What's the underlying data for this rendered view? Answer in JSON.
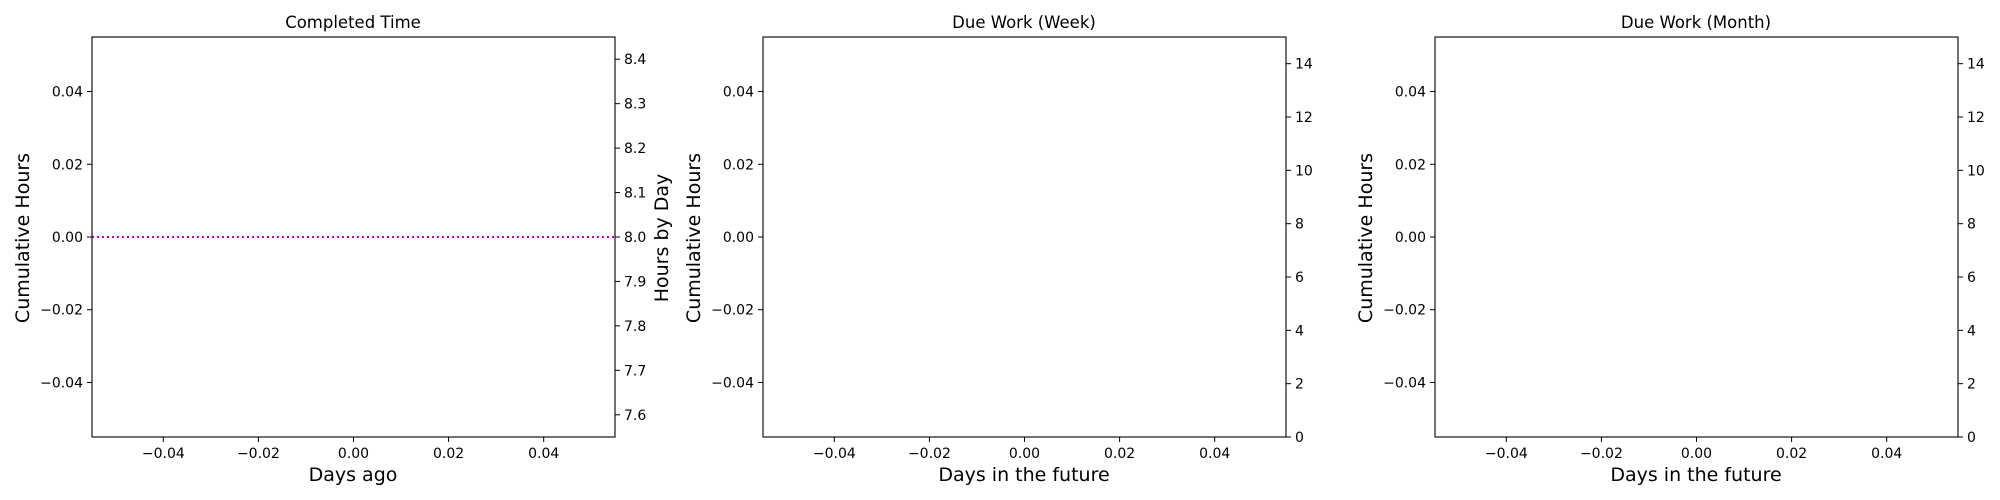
{
  "chart_data": [
    {
      "type": "line",
      "title": "Completed Time",
      "xlabel": "Days ago",
      "ylabel": "Cumulative Hours",
      "y2label": "Hours by Day",
      "xlim": [
        -0.055,
        0.055
      ],
      "ylim": [
        -0.055,
        0.055
      ],
      "y2lim": [
        7.55,
        8.45
      ],
      "xticks": [
        "−0.04",
        "−0.02",
        "0.00",
        "0.02",
        "0.04"
      ],
      "xtick_values": [
        -0.04,
        -0.02,
        0.0,
        0.02,
        0.04
      ],
      "yticks": [
        "−0.04",
        "−0.02",
        "0.00",
        "0.02",
        "0.04"
      ],
      "ytick_values": [
        -0.04,
        -0.02,
        0.0,
        0.02,
        0.04
      ],
      "y2ticks": [
        "7.6",
        "7.7",
        "7.8",
        "7.9",
        "8.0",
        "8.1",
        "8.2",
        "8.3",
        "8.4"
      ],
      "y2tick_values": [
        7.6,
        7.7,
        7.8,
        7.9,
        8.0,
        8.1,
        8.2,
        8.3,
        8.4
      ],
      "grid": false,
      "reference_lines": [
        {
          "axis": "y2",
          "value": 8.0,
          "style": "dotted",
          "color": "#bf00bf"
        }
      ],
      "series": []
    },
    {
      "type": "line",
      "title": "Due Work (Week)",
      "xlabel": "Days in the future",
      "ylabel": "Cumulative Hours",
      "y2label": "",
      "xlim": [
        -0.055,
        0.055
      ],
      "ylim": [
        -0.055,
        0.055
      ],
      "y2lim": [
        0,
        15
      ],
      "xticks": [
        "−0.04",
        "−0.02",
        "0.00",
        "0.02",
        "0.04"
      ],
      "xtick_values": [
        -0.04,
        -0.02,
        0.0,
        0.02,
        0.04
      ],
      "yticks": [
        "−0.04",
        "−0.02",
        "0.00",
        "0.02",
        "0.04"
      ],
      "ytick_values": [
        -0.04,
        -0.02,
        0.0,
        0.02,
        0.04
      ],
      "y2ticks": [
        "0",
        "2",
        "4",
        "6",
        "8",
        "10",
        "12",
        "14"
      ],
      "y2tick_values": [
        0,
        2,
        4,
        6,
        8,
        10,
        12,
        14
      ],
      "grid": false,
      "reference_lines": [],
      "series": []
    },
    {
      "type": "line",
      "title": "Due Work (Month)",
      "xlabel": "Days in the future",
      "ylabel": "Cumulative Hours",
      "y2label": "",
      "xlim": [
        -0.055,
        0.055
      ],
      "ylim": [
        -0.055,
        0.055
      ],
      "y2lim": [
        0,
        15
      ],
      "xticks": [
        "−0.04",
        "−0.02",
        "0.00",
        "0.02",
        "0.04"
      ],
      "xtick_values": [
        -0.04,
        -0.02,
        0.0,
        0.02,
        0.04
      ],
      "yticks": [
        "−0.04",
        "−0.02",
        "0.00",
        "0.02",
        "0.04"
      ],
      "ytick_values": [
        -0.04,
        -0.02,
        0.0,
        0.02,
        0.04
      ],
      "y2ticks": [
        "0",
        "2",
        "4",
        "6",
        "8",
        "10",
        "12",
        "14"
      ],
      "y2tick_values": [
        0,
        2,
        4,
        6,
        8,
        10,
        12,
        14
      ],
      "grid": false,
      "reference_lines": [],
      "series": []
    }
  ]
}
